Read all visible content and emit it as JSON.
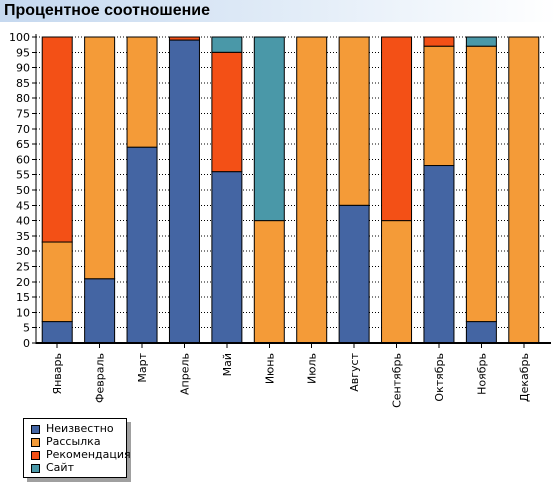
{
  "header": {
    "title": "Процентное соотношение"
  },
  "chart_data": {
    "type": "bar",
    "stacked": true,
    "categories": [
      "Январь",
      "Февраль",
      "Март",
      "Апрель",
      "Май",
      "Июнь",
      "Июль",
      "Август",
      "Сентябрь",
      "Октябрь",
      "Ноябрь",
      "Декабрь"
    ],
    "series": [
      {
        "name": "Неизвестно",
        "color": "#4465a3",
        "values": [
          7,
          21,
          64,
          99,
          56,
          0,
          0,
          45,
          0,
          58,
          7,
          0
        ]
      },
      {
        "name": "Рассылка",
        "color": "#f49b38",
        "values": [
          26,
          79,
          36,
          0,
          0,
          40,
          100,
          55,
          40,
          39,
          90,
          100
        ]
      },
      {
        "name": "Рекомендация",
        "color": "#f35016",
        "values": [
          67,
          0,
          0,
          1,
          39,
          0,
          0,
          0,
          60,
          3,
          0,
          0
        ]
      },
      {
        "name": "Сайт",
        "color": "#4a98a8",
        "values": [
          0,
          0,
          0,
          0,
          5,
          60,
          0,
          0,
          0,
          0,
          3,
          0
        ]
      }
    ],
    "xlabel": "",
    "ylabel": "",
    "ylim": [
      0,
      100
    ],
    "ytick_step": 5,
    "grid": true,
    "legend_position": "bottom-left"
  }
}
